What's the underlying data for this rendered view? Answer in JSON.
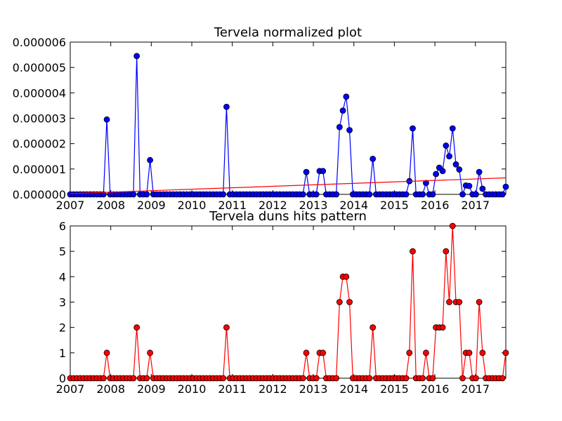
{
  "chart_data": [
    {
      "type": "line",
      "title": "Tervela normalized plot",
      "xlabel": "",
      "ylabel": "",
      "xlim": [
        2007.0,
        2017.75
      ],
      "ylim": [
        0,
        6e-06
      ],
      "x_ticks": [
        "2007",
        "2008",
        "2009",
        "2010",
        "2011",
        "2012",
        "2013",
        "2014",
        "2015",
        "2016",
        "2017"
      ],
      "y_ticks": [
        "0.000000",
        "0.000001",
        "0.000002",
        "0.000003",
        "0.000004",
        "0.000005",
        "0.000006"
      ],
      "grid": false,
      "series": [
        {
          "color": "#0000ff",
          "marker": "circle",
          "values": [
            0,
            0,
            0,
            0,
            0,
            0,
            0,
            0,
            0,
            0,
            0,
            2.95e-06,
            0,
            0,
            0,
            0,
            0,
            0,
            0,
            0,
            5.45e-06,
            0,
            0,
            0,
            1.35e-06,
            0,
            0,
            0,
            0,
            0,
            0,
            0,
            0,
            0,
            0,
            0,
            0,
            0,
            0,
            0,
            0,
            0,
            0,
            0,
            0,
            0,
            0,
            3.45e-06,
            0,
            0,
            0,
            0,
            0,
            0,
            0,
            0,
            0,
            0,
            0,
            0,
            0,
            0,
            0,
            0,
            0,
            0,
            0,
            0,
            0,
            0,
            0,
            8.8e-07,
            0,
            0,
            0,
            9.2e-07,
            9.2e-07,
            0,
            0,
            0,
            0,
            2.65e-06,
            3.3e-06,
            3.85e-06,
            2.53e-06,
            0,
            0,
            0,
            0,
            0,
            0,
            1.4e-06,
            0,
            0,
            0,
            0,
            0,
            0,
            0,
            0,
            0,
            0,
            5.2e-07,
            2.6e-06,
            0,
            0,
            0,
            4.5e-07,
            0,
            0,
            8e-07,
            1.05e-06,
            9.2e-07,
            1.92e-06,
            1.5e-06,
            2.6e-06,
            1.18e-06,
            9.8e-07,
            0,
            3.5e-07,
            3.3e-07,
            0,
            0,
            8.8e-07,
            2.2e-07,
            0,
            0,
            0,
            0,
            0,
            0,
            3e-07
          ]
        },
        {
          "color": "#ff0000",
          "marker": "none",
          "kind": "trend",
          "x": [
            2007.0,
            2017.75
          ],
          "values": [
            3e-08,
            6.5e-07
          ]
        }
      ]
    },
    {
      "type": "line",
      "title": "Tervela duns hits pattern",
      "xlabel": "",
      "ylabel": "",
      "xlim": [
        2007.0,
        2017.75
      ],
      "ylim": [
        0,
        6
      ],
      "x_ticks": [
        "2007",
        "2008",
        "2009",
        "2010",
        "2011",
        "2012",
        "2013",
        "2014",
        "2015",
        "2016",
        "2017"
      ],
      "y_ticks": [
        "0",
        "1",
        "2",
        "3",
        "4",
        "5",
        "6"
      ],
      "grid": false,
      "series": [
        {
          "color": "#ff0000",
          "marker": "circle",
          "values": [
            0,
            0,
            0,
            0,
            0,
            0,
            0,
            0,
            0,
            0,
            0,
            1,
            0,
            0,
            0,
            0,
            0,
            0,
            0,
            0,
            2,
            0,
            0,
            0,
            1,
            0,
            0,
            0,
            0,
            0,
            0,
            0,
            0,
            0,
            0,
            0,
            0,
            0,
            0,
            0,
            0,
            0,
            0,
            0,
            0,
            0,
            0,
            2,
            0,
            0,
            0,
            0,
            0,
            0,
            0,
            0,
            0,
            0,
            0,
            0,
            0,
            0,
            0,
            0,
            0,
            0,
            0,
            0,
            0,
            0,
            0,
            1,
            0,
            0,
            0,
            1,
            1,
            0,
            0,
            0,
            0,
            3,
            4,
            4,
            3,
            0,
            0,
            0,
            0,
            0,
            0,
            2,
            0,
            0,
            0,
            0,
            0,
            0,
            0,
            0,
            0,
            0,
            1,
            5,
            0,
            0,
            0,
            1,
            0,
            0,
            2,
            2,
            2,
            5,
            3,
            6,
            3,
            3,
            0,
            1,
            1,
            0,
            0,
            3,
            1,
            0,
            0,
            0,
            0,
            0,
            0,
            1
          ]
        }
      ]
    }
  ]
}
